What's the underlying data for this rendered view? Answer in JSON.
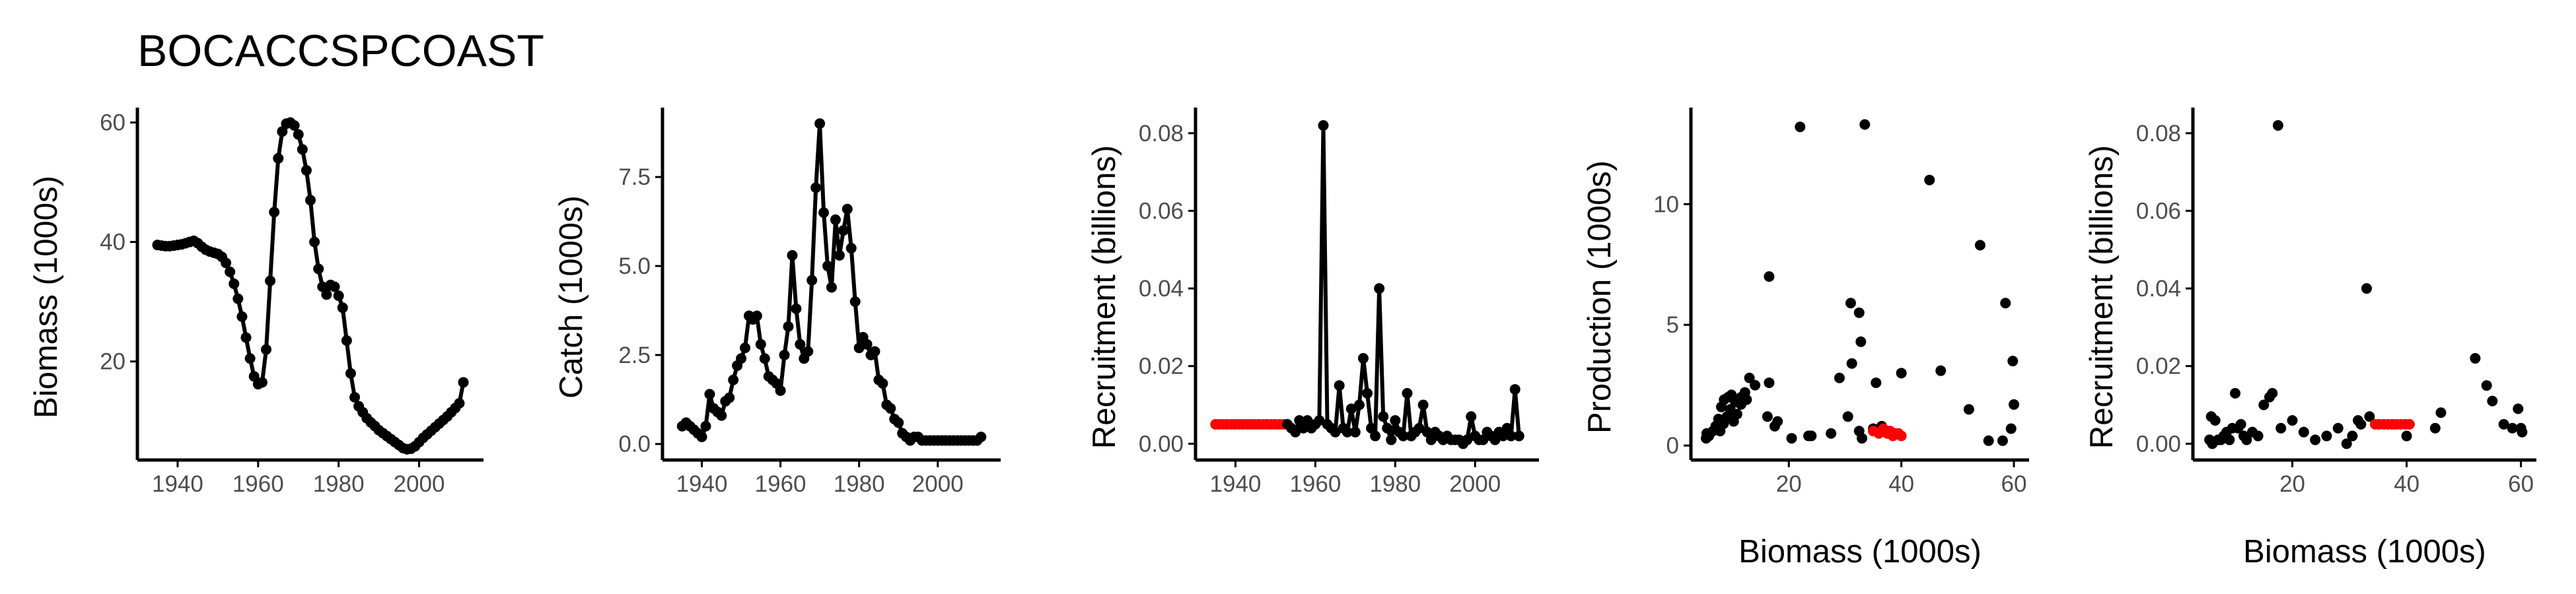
{
  "figure_title": "BOCACCSPCOAST",
  "colors": {
    "point": "#000000",
    "line": "#000000",
    "highlight": "#ff0000",
    "axis": "#000000",
    "tick_text": "#4d4d4d"
  },
  "chart_data": [
    {
      "id": "biomass",
      "type": "line",
      "xlabel": "",
      "ylabel": "Biomass (1000s)",
      "xlim": [
        1930,
        2016
      ],
      "ylim": [
        3.5,
        62.5
      ],
      "xticks": [
        1940,
        1960,
        1980,
        2000
      ],
      "xtick_labels": [
        "1940",
        "1960",
        "1980",
        "2000"
      ],
      "yticks": [
        20,
        40,
        60
      ],
      "ytick_labels": [
        "20",
        "40",
        "60"
      ],
      "points": true,
      "line": true,
      "x": [
        1935,
        1936,
        1937,
        1938,
        1939,
        1940,
        1941,
        1942,
        1943,
        1944,
        1945,
        1946,
        1947,
        1948,
        1949,
        1950,
        1951,
        1952,
        1953,
        1954,
        1955,
        1956,
        1957,
        1958,
        1959,
        1960,
        1961,
        1962,
        1963,
        1964,
        1965,
        1966,
        1967,
        1968,
        1969,
        1970,
        1971,
        1972,
        1973,
        1974,
        1975,
        1976,
        1977,
        1978,
        1979,
        1980,
        1981,
        1982,
        1983,
        1984,
        1985,
        1986,
        1987,
        1988,
        1989,
        1990,
        1991,
        1992,
        1993,
        1994,
        1995,
        1996,
        1997,
        1998,
        1999,
        2000,
        2001,
        2002,
        2003,
        2004,
        2005,
        2006,
        2007,
        2008,
        2009,
        2010,
        2011
      ],
      "y": [
        39.5,
        39.4,
        39.3,
        39.3,
        39.4,
        39.5,
        39.6,
        39.8,
        40.0,
        40.2,
        39.8,
        39.2,
        38.7,
        38.4,
        38.2,
        38.0,
        37.5,
        36.5,
        35.0,
        33.0,
        30.5,
        27.5,
        24.0,
        20.5,
        17.5,
        16.2,
        16.5,
        22.0,
        33.5,
        45.0,
        54.0,
        58.5,
        59.8,
        60.0,
        59.5,
        58.0,
        55.5,
        52.0,
        47.0,
        40.0,
        35.5,
        32.5,
        31.2,
        32.8,
        32.5,
        31.0,
        29.0,
        23.5,
        18.0,
        14.0,
        12.5,
        11.5,
        10.5,
        9.8,
        9.2,
        8.5,
        8.0,
        7.5,
        7.0,
        6.5,
        6.0,
        5.5,
        5.3,
        5.4,
        5.8,
        6.5,
        7.2,
        7.8,
        8.4,
        9.0,
        9.6,
        10.2,
        10.8,
        11.5,
        12.2,
        13.0,
        16.5
      ]
    },
    {
      "id": "catch",
      "type": "line",
      "xlabel": "",
      "ylabel": "Catch (1000s)",
      "xlim": [
        1930,
        2016
      ],
      "ylim": [
        -0.45,
        9.45
      ],
      "xticks": [
        1940,
        1960,
        1980,
        2000
      ],
      "xtick_labels": [
        "1940",
        "1960",
        "1980",
        "2000"
      ],
      "yticks": [
        0,
        2.5,
        5,
        7.5
      ],
      "ytick_labels": [
        "0.0",
        "2.5",
        "5.0",
        "7.5"
      ],
      "points": true,
      "line": true,
      "x": [
        1935,
        1936,
        1937,
        1938,
        1939,
        1940,
        1941,
        1942,
        1943,
        1944,
        1945,
        1946,
        1947,
        1948,
        1949,
        1950,
        1951,
        1952,
        1953,
        1954,
        1955,
        1956,
        1957,
        1958,
        1959,
        1960,
        1961,
        1962,
        1963,
        1964,
        1965,
        1966,
        1967,
        1968,
        1969,
        1970,
        1971,
        1972,
        1973,
        1974,
        1975,
        1976,
        1977,
        1978,
        1979,
        1980,
        1981,
        1982,
        1983,
        1984,
        1985,
        1986,
        1987,
        1988,
        1989,
        1990,
        1991,
        1992,
        1993,
        1994,
        1995,
        1996,
        1997,
        1998,
        1999,
        2000,
        2001,
        2002,
        2003,
        2004,
        2005,
        2006,
        2007,
        2008,
        2009,
        2010,
        2011
      ],
      "y": [
        0.5,
        0.6,
        0.5,
        0.4,
        0.3,
        0.2,
        0.5,
        1.4,
        1.0,
        0.9,
        0.8,
        1.2,
        1.3,
        1.8,
        2.2,
        2.4,
        2.7,
        3.6,
        3.5,
        3.6,
        2.8,
        2.4,
        1.9,
        1.8,
        1.7,
        1.5,
        2.5,
        3.3,
        5.3,
        3.8,
        2.8,
        2.4,
        2.6,
        4.6,
        7.2,
        9.0,
        6.5,
        5.0,
        4.4,
        6.3,
        5.3,
        6.0,
        6.6,
        5.5,
        4.0,
        2.7,
        3.0,
        2.8,
        2.5,
        2.6,
        1.8,
        1.7,
        1.1,
        1.0,
        0.7,
        0.6,
        0.3,
        0.2,
        0.1,
        0.2,
        0.2,
        0.1,
        0.1,
        0.1,
        0.1,
        0.1,
        0.1,
        0.1,
        0.1,
        0.1,
        0.1,
        0.1,
        0.1,
        0.1,
        0.1,
        0.1,
        0.2
      ]
    },
    {
      "id": "recruitment-time",
      "type": "line",
      "xlabel": "",
      "ylabel": "Recruitment (billions)",
      "xlim": [
        1930,
        2016
      ],
      "ylim": [
        -0.0042,
        0.0866
      ],
      "xticks": [
        1940,
        1960,
        1980,
        2000
      ],
      "xtick_labels": [
        "1940",
        "1960",
        "1980",
        "2000"
      ],
      "yticks": [
        0,
        0.02,
        0.04,
        0.06,
        0.08
      ],
      "ytick_labels": [
        "0.00",
        "0.02",
        "0.04",
        "0.06",
        "0.08"
      ],
      "points": true,
      "line": true,
      "highlight_x_max": 1952,
      "x": [
        1935,
        1936,
        1937,
        1938,
        1939,
        1940,
        1941,
        1942,
        1943,
        1944,
        1945,
        1946,
        1947,
        1948,
        1949,
        1950,
        1951,
        1952,
        1953,
        1954,
        1955,
        1956,
        1957,
        1958,
        1959,
        1960,
        1961,
        1962,
        1963,
        1964,
        1965,
        1966,
        1967,
        1968,
        1969,
        1970,
        1971,
        1972,
        1973,
        1974,
        1975,
        1976,
        1977,
        1978,
        1979,
        1980,
        1981,
        1982,
        1983,
        1984,
        1985,
        1986,
        1987,
        1988,
        1989,
        1990,
        1991,
        1992,
        1993,
        1994,
        1995,
        1996,
        1997,
        1998,
        1999,
        2000,
        2001,
        2002,
        2003,
        2004,
        2005,
        2006,
        2007,
        2008,
        2009,
        2010,
        2011
      ],
      "y": [
        0.005,
        0.005,
        0.005,
        0.005,
        0.005,
        0.005,
        0.005,
        0.005,
        0.005,
        0.005,
        0.005,
        0.005,
        0.005,
        0.005,
        0.005,
        0.005,
        0.005,
        0.005,
        0.005,
        0.004,
        0.003,
        0.006,
        0.004,
        0.006,
        0.004,
        0.005,
        0.006,
        0.082,
        0.005,
        0.004,
        0.003,
        0.015,
        0.004,
        0.003,
        0.009,
        0.003,
        0.01,
        0.022,
        0.013,
        0.004,
        0.002,
        0.04,
        0.007,
        0.004,
        0.001,
        0.006,
        0.003,
        0.002,
        0.013,
        0.002,
        0.003,
        0.004,
        0.01,
        0.003,
        0.001,
        0.003,
        0.002,
        0.001,
        0.002,
        0.001,
        0.001,
        0.001,
        0.0,
        0.001,
        0.007,
        0.002,
        0.001,
        0.001,
        0.003,
        0.002,
        0.001,
        0.003,
        0.002,
        0.004,
        0.002,
        0.014,
        0.002
      ]
    },
    {
      "id": "production-vs-biomass",
      "type": "scatter",
      "xlabel": "Biomass (1000s)",
      "ylabel": "Production (1000s)",
      "xlim": [
        2.6,
        62.7
      ],
      "ylim": [
        -0.6,
        14.0
      ],
      "xticks": [
        20,
        40,
        60
      ],
      "xtick_labels": [
        "20",
        "40",
        "60"
      ],
      "yticks": [
        0,
        5,
        10
      ],
      "ytick_labels": [
        "0",
        "5",
        "10"
      ],
      "black": {
        "x": [
          5.3,
          5.4,
          5.8,
          6.5,
          7.2,
          7.8,
          8.4,
          9.0,
          9.6,
          10.2,
          10.8,
          11.5,
          12.2,
          13.0,
          16.5,
          7.0,
          7.5,
          8.0,
          8.5,
          9.2,
          9.8,
          10.5,
          11.5,
          12.5,
          14.0,
          18.0,
          23.5,
          29.0,
          31.0,
          32.5,
          32.8,
          31.2,
          32.5,
          35.5,
          40.0,
          47.0,
          52.0,
          55.5,
          58.0,
          59.5,
          60.0,
          59.8,
          58.5,
          54.0,
          45.0,
          33.5,
          22.0,
          16.5,
          16.2,
          17.5,
          20.5,
          24.0,
          27.5,
          30.5,
          33.0,
          35.0,
          36.5,
          37.5,
          38.0
        ],
        "y": [
          0.3,
          0.5,
          0.4,
          0.6,
          0.7,
          0.6,
          0.9,
          1.2,
          1.5,
          1.0,
          1.3,
          2.0,
          2.2,
          2.8,
          2.6,
          0.8,
          1.1,
          1.6,
          1.9,
          2.0,
          2.1,
          1.8,
          1.7,
          1.9,
          2.5,
          1.0,
          0.4,
          2.8,
          5.9,
          5.5,
          4.3,
          3.4,
          0.6,
          2.6,
          3.0,
          3.1,
          1.5,
          0.2,
          0.2,
          0.7,
          1.7,
          3.5,
          5.9,
          8.3,
          11.0,
          13.3,
          13.2,
          7.0,
          1.2,
          0.8,
          0.3,
          0.4,
          0.5,
          1.2,
          0.3,
          0.7,
          0.8,
          0.6,
          0.5
        ]
      },
      "red": {
        "x": [
          35.0,
          36.0,
          36.8,
          37.5,
          38.0,
          38.5,
          39.0,
          39.5,
          40.0
        ],
        "y": [
          0.6,
          0.5,
          0.7,
          0.5,
          0.6,
          0.4,
          0.5,
          0.5,
          0.4
        ]
      }
    },
    {
      "id": "recruitment-vs-biomass",
      "type": "scatter",
      "xlabel": "Biomass (1000s)",
      "ylabel": "Recruitment (billions)",
      "xlim": [
        2.6,
        62.7
      ],
      "ylim": [
        -0.0042,
        0.0866
      ],
      "xticks": [
        20,
        40,
        60
      ],
      "xtick_labels": [
        "20",
        "40",
        "60"
      ],
      "yticks": [
        0,
        0.02,
        0.04,
        0.06,
        0.08
      ],
      "ytick_labels": [
        "0.00",
        "0.02",
        "0.04",
        "0.06",
        "0.08"
      ],
      "black": {
        "x": [
          5.5,
          6.0,
          6.5,
          7.0,
          7.5,
          8.0,
          8.5,
          9.0,
          9.5,
          10.0,
          10.5,
          11.0,
          11.5,
          12.0,
          13.0,
          14.0,
          15.0,
          16.0,
          17.5,
          16.5,
          18.0,
          20.0,
          22.0,
          24.0,
          26.0,
          28.0,
          29.5,
          30.5,
          31.5,
          32.0,
          33.0,
          33.5,
          36.0,
          40.0,
          45.0,
          46.0,
          52.0,
          54.0,
          55.0,
          57.0,
          58.5,
          59.5,
          60.0,
          60.2,
          5.8
        ],
        "y": [
          0.001,
          0.0,
          0.006,
          0.001,
          0.001,
          0.002,
          0.003,
          0.001,
          0.004,
          0.013,
          0.004,
          0.005,
          0.002,
          0.001,
          0.003,
          0.002,
          0.01,
          0.012,
          0.082,
          0.013,
          0.004,
          0.006,
          0.003,
          0.001,
          0.002,
          0.004,
          0.0,
          0.002,
          0.006,
          0.005,
          0.04,
          0.007,
          0.005,
          0.002,
          0.004,
          0.008,
          0.022,
          0.015,
          0.011,
          0.005,
          0.004,
          0.009,
          0.004,
          0.003,
          0.007
        ]
      },
      "red": {
        "x": [
          34.5,
          35.2,
          36.0,
          36.8,
          37.5,
          38.2,
          39.0,
          39.8,
          40.5
        ],
        "y": [
          0.005,
          0.005,
          0.005,
          0.005,
          0.005,
          0.005,
          0.005,
          0.005,
          0.005
        ]
      }
    }
  ]
}
